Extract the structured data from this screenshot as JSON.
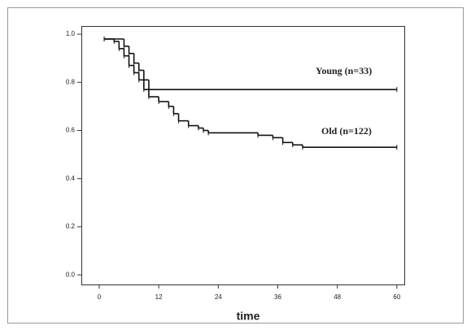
{
  "chart_data": {
    "type": "step",
    "x_label": "time",
    "annotations": [
      "Young (n=33)",
      "Old (n=122)"
    ],
    "series": [
      {
        "color": "#111111",
        "x": [
          1,
          5,
          6,
          7,
          8,
          9,
          10,
          60
        ],
        "values": [
          0.98,
          0.95,
          0.92,
          0.88,
          0.85,
          0.81,
          0.77,
          0.77
        ]
      },
      {
        "color": "#111111",
        "x": [
          1,
          3,
          4,
          5,
          6,
          7,
          8,
          9,
          10,
          12,
          14,
          15,
          16,
          18,
          20,
          21,
          22,
          32,
          35,
          37,
          39,
          41,
          60
        ],
        "values": [
          0.98,
          0.97,
          0.94,
          0.91,
          0.87,
          0.84,
          0.81,
          0.77,
          0.74,
          0.72,
          0.7,
          0.67,
          0.64,
          0.62,
          0.61,
          0.6,
          0.59,
          0.58,
          0.57,
          0.55,
          0.54,
          0.53,
          0.53
        ]
      }
    ],
    "xlim": [
      -3.6,
      61.5
    ],
    "ylim": [
      -0.04,
      1.034
    ],
    "xticks": [
      0,
      12,
      24,
      36,
      48,
      60
    ],
    "yticks": [
      {
        "value": 0,
        "label": "0.0"
      },
      0.2,
      0.4,
      0.6,
      0.8,
      {
        "value": 1,
        "label": "1.0"
      }
    ]
  }
}
